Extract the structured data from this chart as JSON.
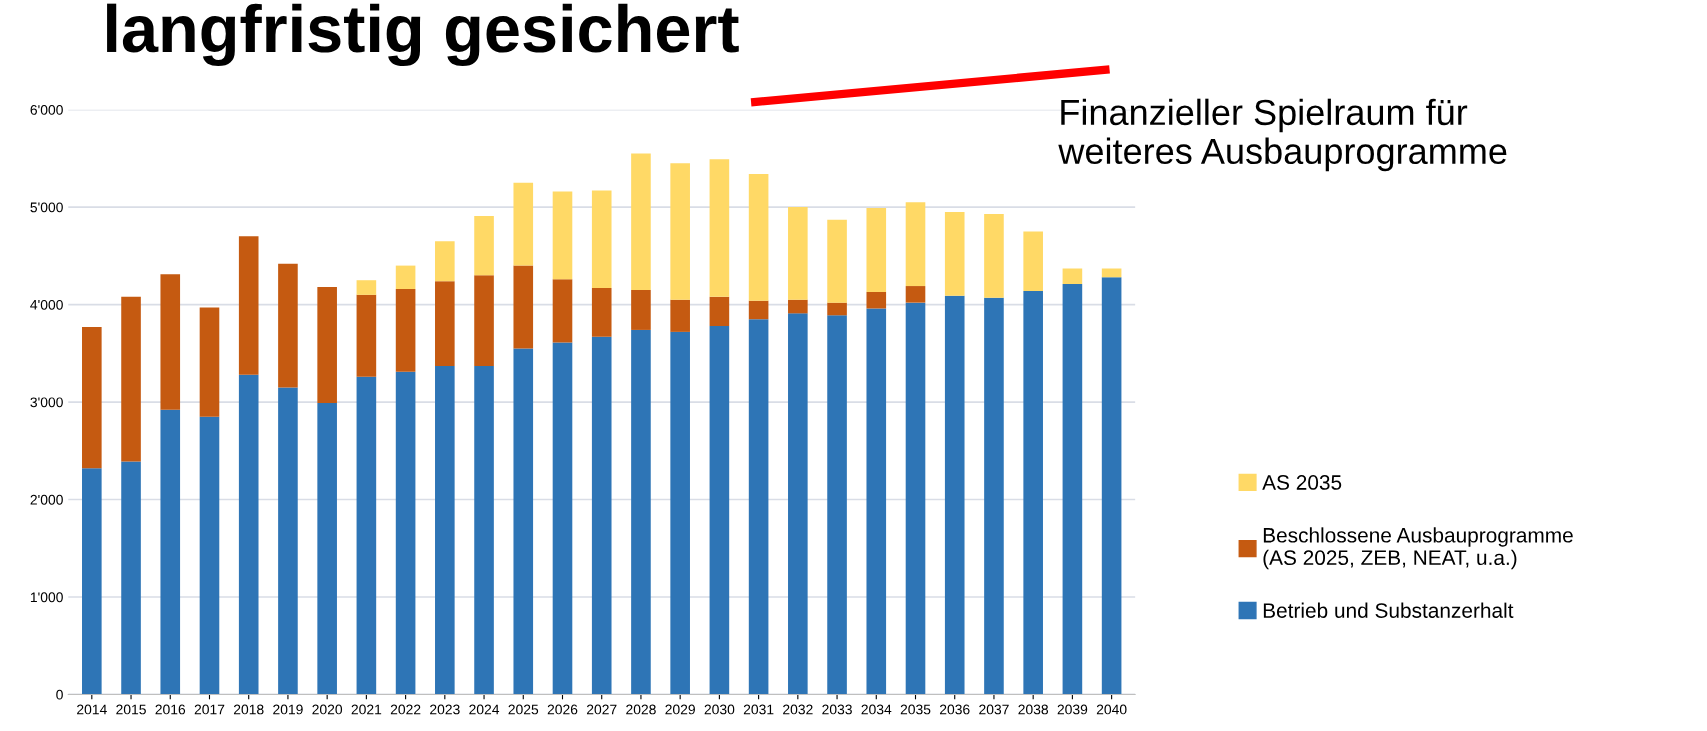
{
  "chart_data": {
    "type": "bar",
    "title": "langfristig gesichert",
    "stacked": true,
    "categories": [
      "2014",
      "2015",
      "2016",
      "2017",
      "2018",
      "2019",
      "2020",
      "2021",
      "2022",
      "2023",
      "2024",
      "2025",
      "2026",
      "2027",
      "2028",
      "2029",
      "2030",
      "2031",
      "2032",
      "2033",
      "2034",
      "2035",
      "2036",
      "2037",
      "2038",
      "2039",
      "2040"
    ],
    "series": [
      {
        "name": "Betrieb und Substanzerhalt",
        "color": "#2e75b6",
        "values": [
          2320,
          2390,
          2920,
          2850,
          3280,
          3150,
          2990,
          3260,
          3310,
          3370,
          3370,
          3550,
          3610,
          3670,
          3740,
          3720,
          3780,
          3850,
          3910,
          3890,
          3960,
          4020,
          4090,
          4070,
          4140,
          4210,
          4280
        ]
      },
      {
        "name": "Beschlossene Ausbauprogramme\n(AS 2025, ZEB, NEAT, u.a.)",
        "color": "#c55a11",
        "values": [
          1450,
          1690,
          1390,
          1120,
          1420,
          1270,
          1190,
          840,
          850,
          870,
          930,
          850,
          650,
          500,
          410,
          330,
          300,
          190,
          140,
          130,
          170,
          170,
          0,
          0,
          0,
          0,
          0
        ]
      },
      {
        "name": "AS 2035",
        "color": "#ffd966",
        "values": [
          0,
          0,
          0,
          0,
          0,
          0,
          0,
          150,
          240,
          410,
          610,
          850,
          900,
          1000,
          1400,
          1400,
          1410,
          1300,
          950,
          850,
          860,
          860,
          860,
          860,
          610,
          160,
          90
        ]
      }
    ],
    "ylim": [
      0,
      6000
    ],
    "yticks": [
      {
        "value": 0,
        "label": "0"
      },
      {
        "value": 1000,
        "label": "1'000"
      },
      {
        "value": 2000,
        "label": "2'000"
      },
      {
        "value": 3000,
        "label": "3'000"
      },
      {
        "value": 4000,
        "label": "4'000"
      },
      {
        "value": 5000,
        "label": "5'000"
      },
      {
        "value": 6000,
        "label": "6'000"
      }
    ],
    "grid": "y",
    "legend": "right",
    "annotations": [
      "Finanzieller Spielraum für\nweiteres Ausbauprogramme"
    ]
  }
}
